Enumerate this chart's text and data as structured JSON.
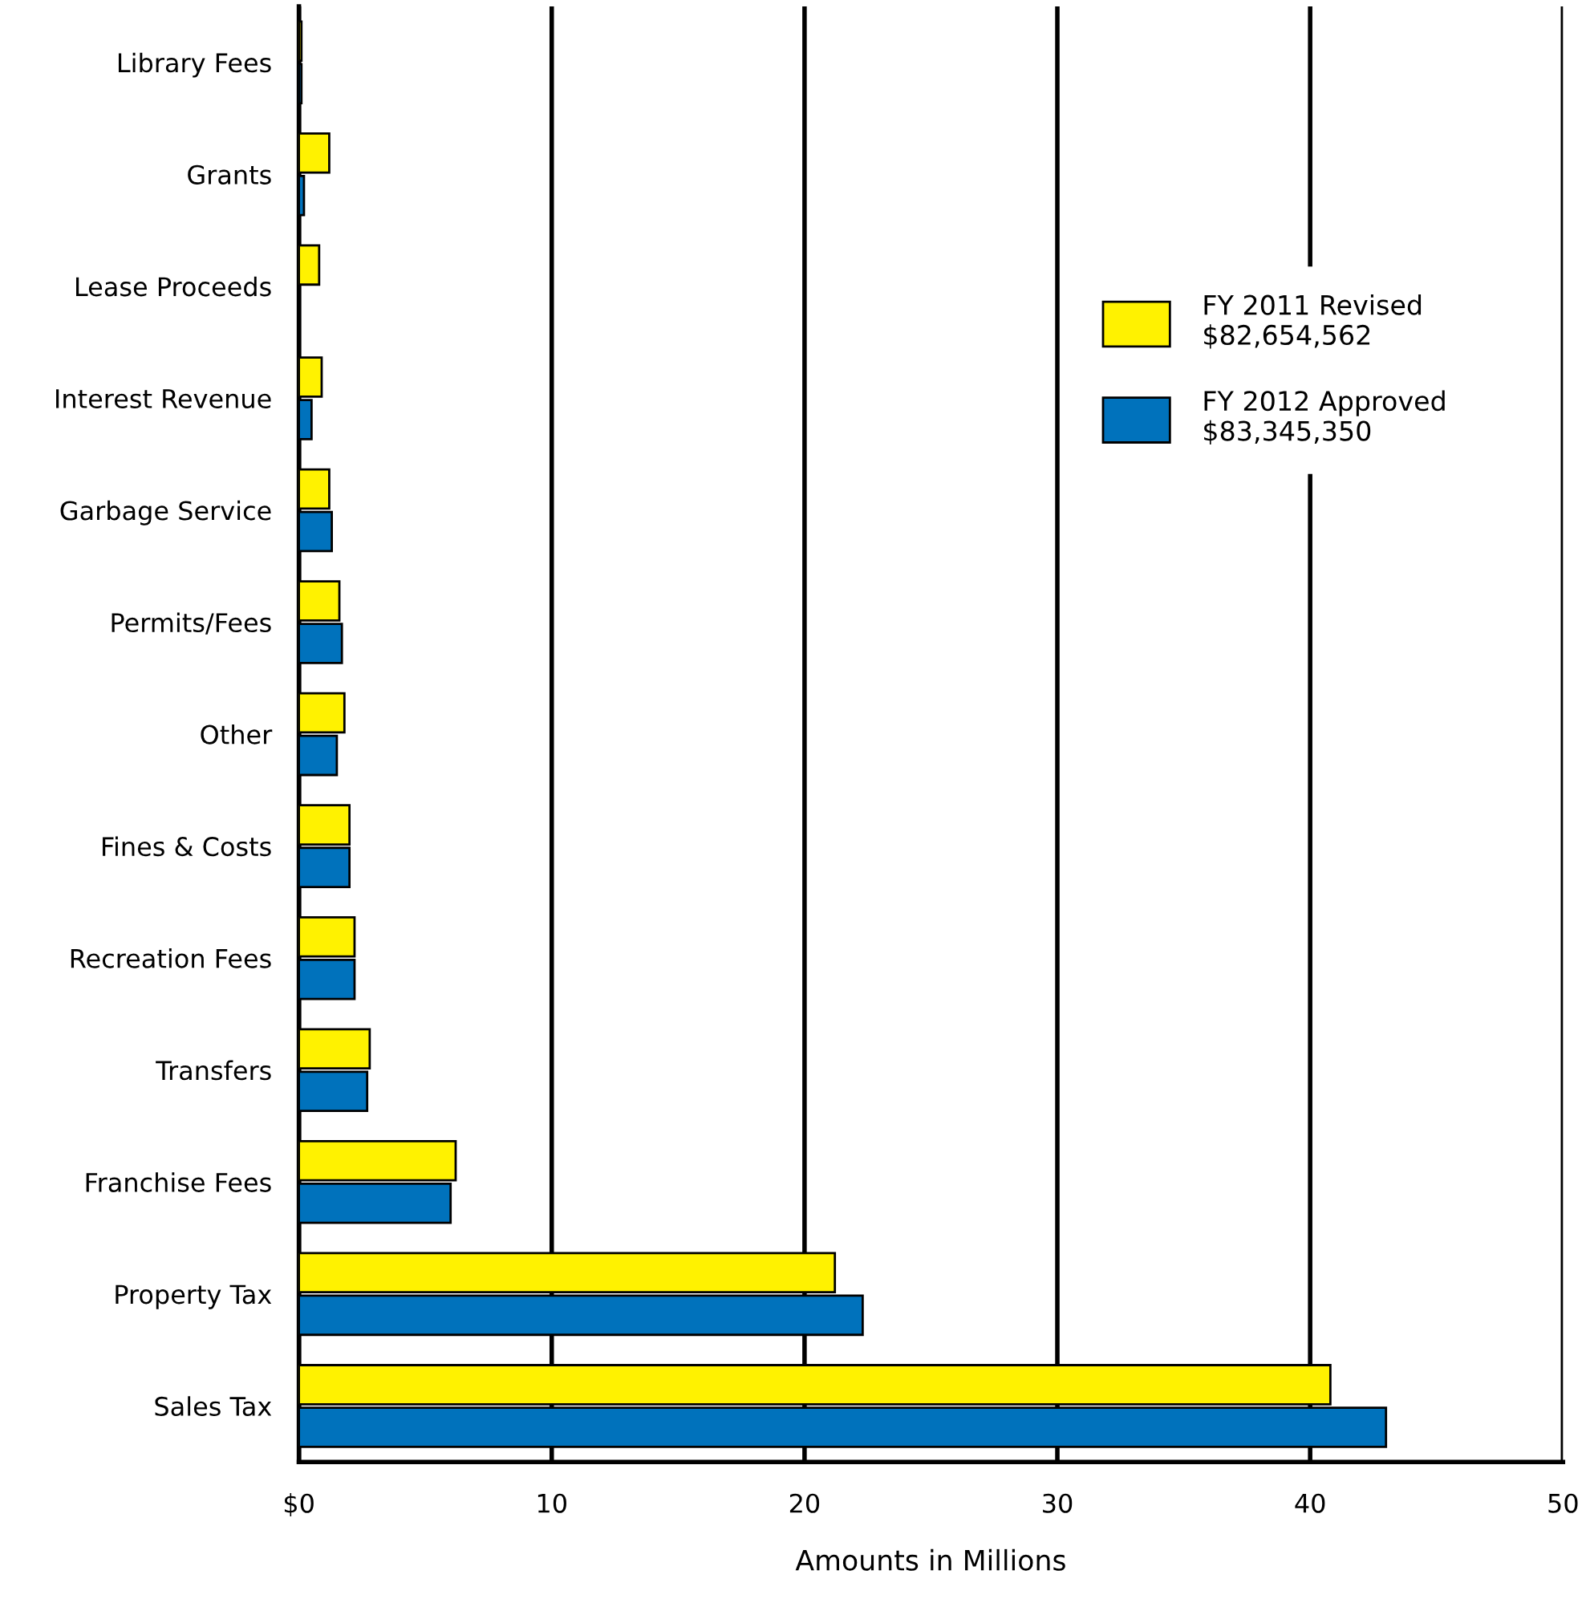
{
  "chart_data": {
    "type": "bar",
    "orientation": "horizontal",
    "xlabel": "Amounts in Millions",
    "categories": [
      "Library Fees",
      "Grants",
      "Lease Proceeds",
      "Interest Revenue",
      "Garbage Service",
      "Permits/Fees",
      "Other",
      "Fines & Costs",
      "Recreation Fees",
      "Transfers",
      "Franchise Fees",
      "Property Tax",
      "Sales Tax"
    ],
    "series": [
      {
        "name": "FY 2011 Revised\n$82,654,562",
        "color": "#fff200",
        "values": [
          0.1,
          1.2,
          0.8,
          0.9,
          1.2,
          1.6,
          1.8,
          2.0,
          2.2,
          2.8,
          6.2,
          21.2,
          40.8
        ]
      },
      {
        "name": "FY 2012 Approved\n$83,345,350",
        "color": "#0072bc",
        "values": [
          0.1,
          0.2,
          null,
          0.5,
          1.3,
          1.7,
          1.5,
          2.0,
          2.2,
          2.7,
          6.0,
          22.3,
          43.0
        ]
      }
    ],
    "xlim": [
      0,
      50
    ],
    "xticks": [
      {
        "value": 0,
        "label": "$0"
      },
      10,
      20,
      30,
      40,
      50
    ],
    "grid": "x",
    "legend": "right"
  }
}
